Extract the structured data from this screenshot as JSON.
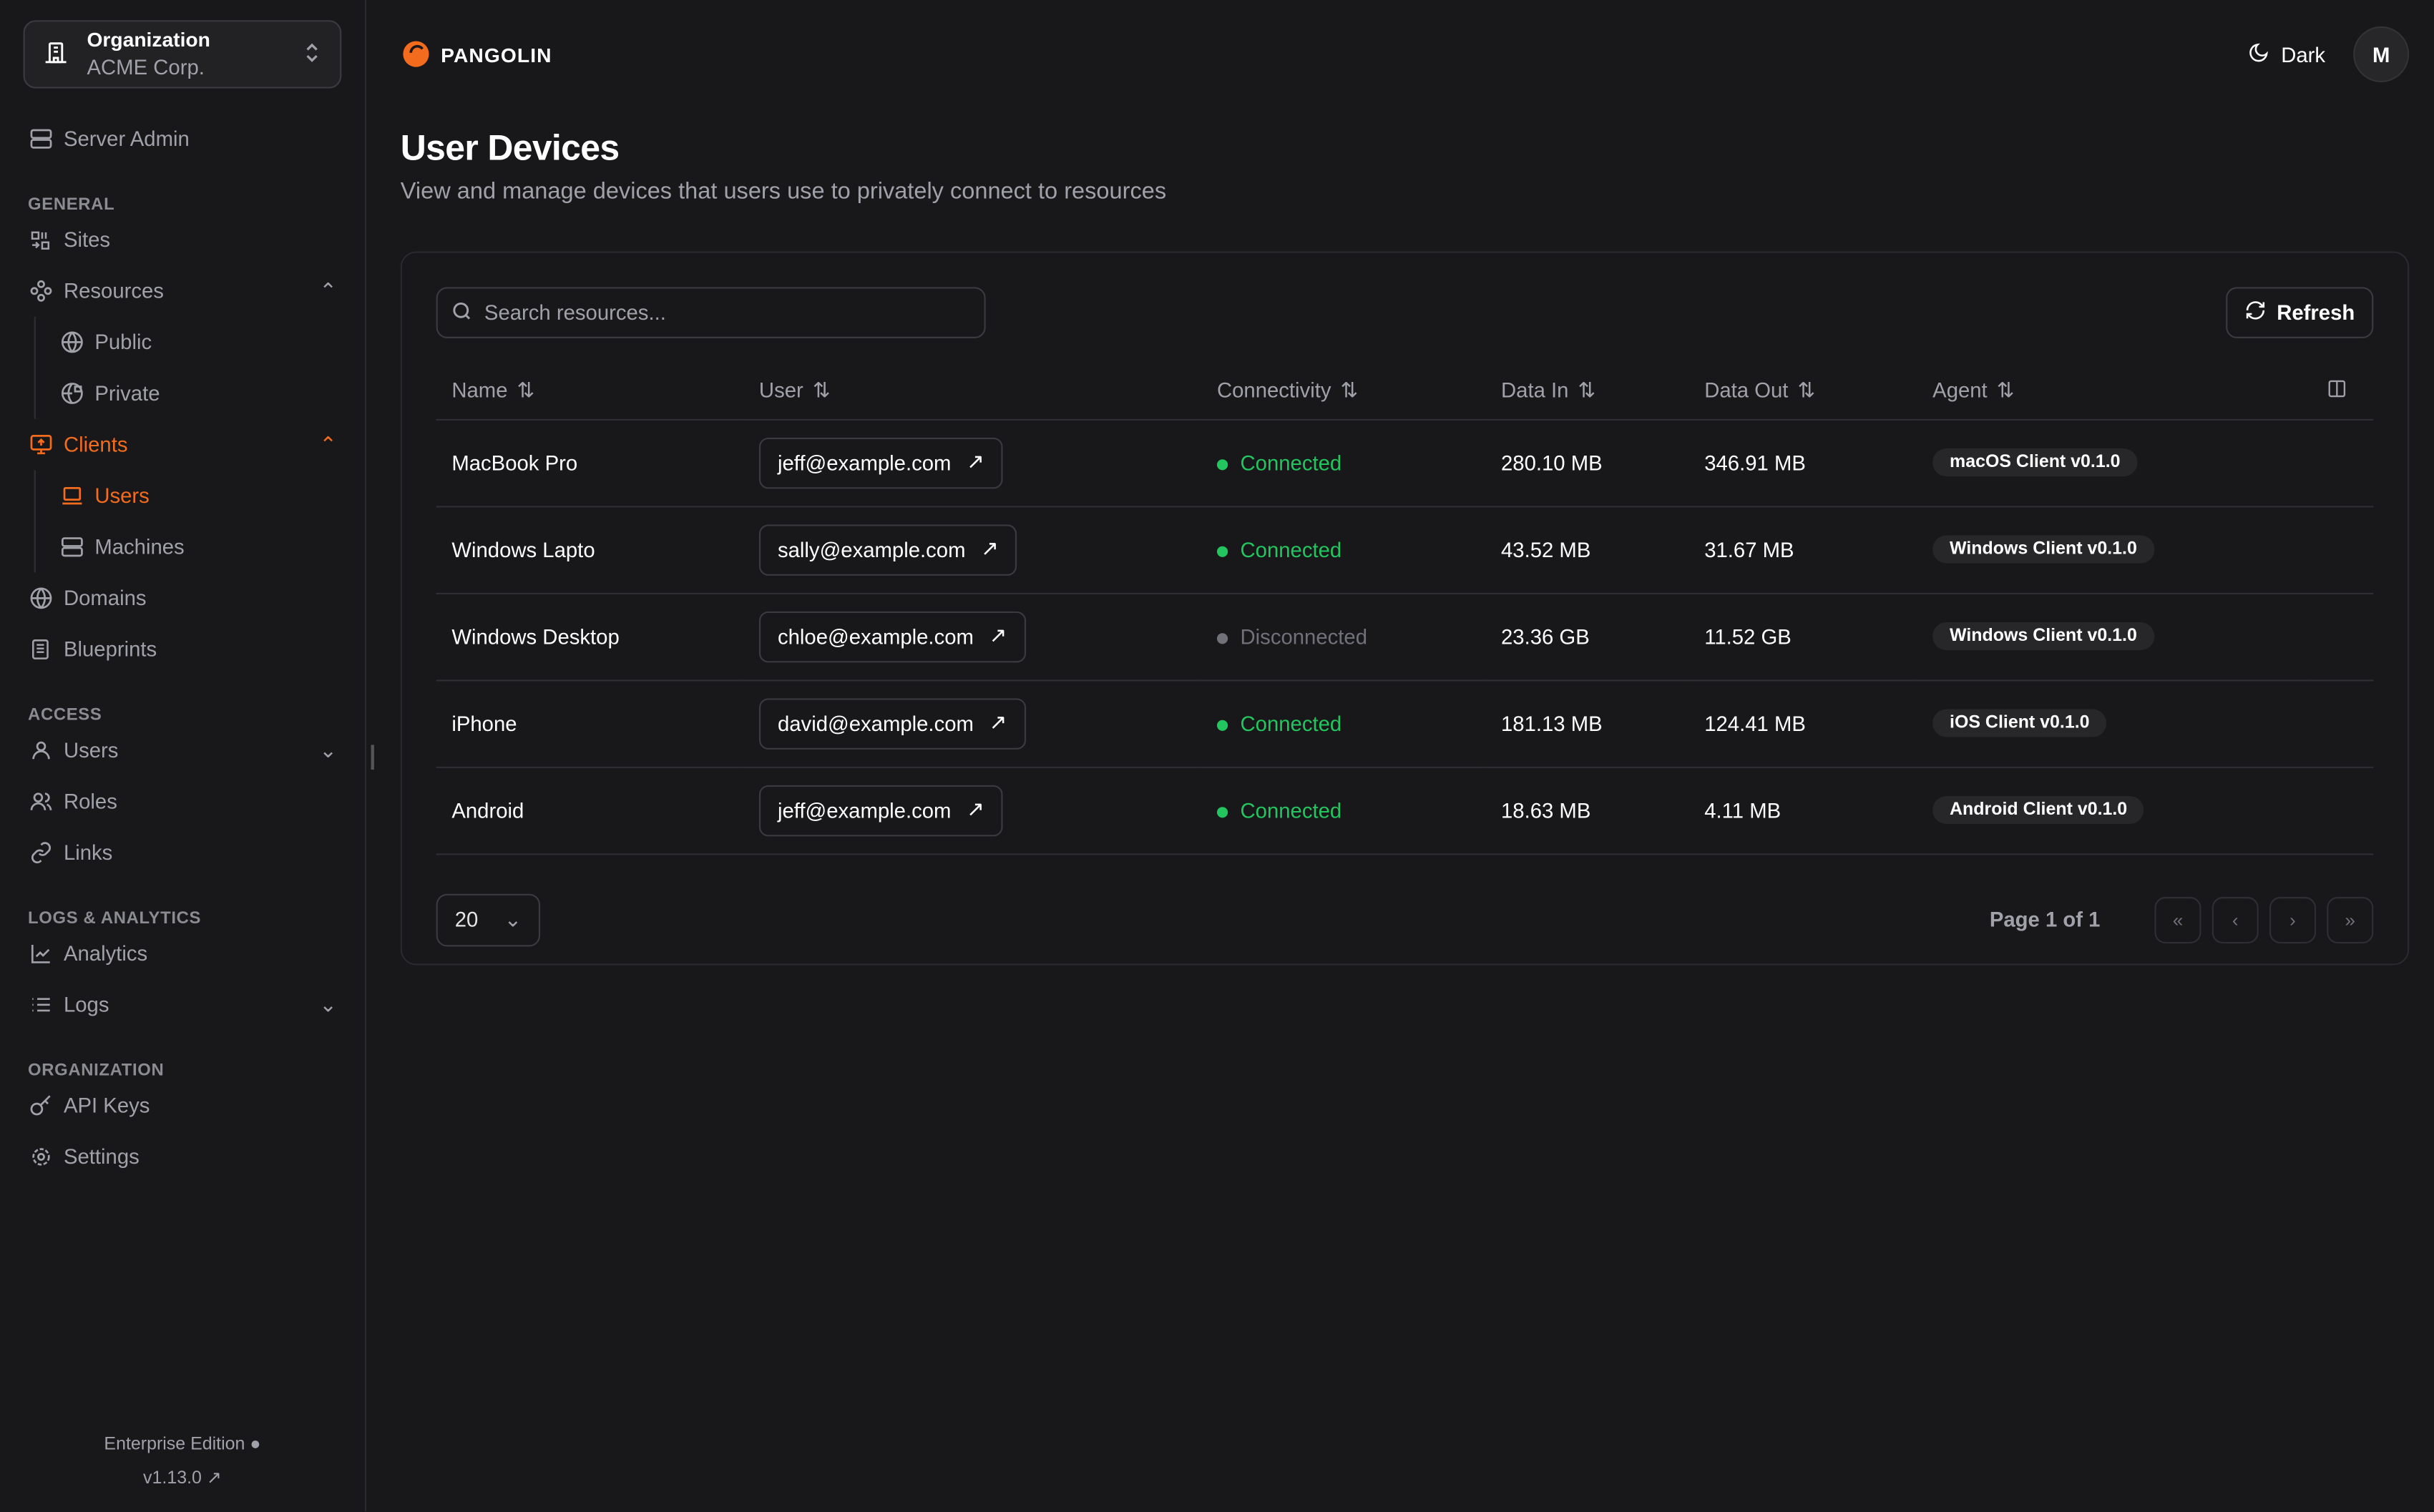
{
  "org": {
    "label": "Organization",
    "name": "ACME Corp."
  },
  "sidebar": {
    "server_admin": "Server Admin",
    "sections": {
      "general": "GENERAL",
      "access": "ACCESS",
      "logs": "LOGS & ANALYTICS",
      "organization": "ORGANIZATION"
    },
    "items": {
      "sites": "Sites",
      "resources": "Resources",
      "public": "Public",
      "private": "Private",
      "clients": "Clients",
      "users": "Users",
      "machines": "Machines",
      "domains": "Domains",
      "blueprints": "Blueprints",
      "access_users": "Users",
      "roles": "Roles",
      "links": "Links",
      "analytics": "Analytics",
      "logs": "Logs",
      "api_keys": "API Keys",
      "settings": "Settings"
    },
    "edition": "Enterprise Edition",
    "version": "v1.13.0"
  },
  "header": {
    "brand": "PANGOLIN",
    "theme": "Dark",
    "avatar": "M",
    "accent": "#f36b1c"
  },
  "page": {
    "title": "User Devices",
    "description": "View and manage devices that users use to privately connect to resources"
  },
  "toolbar": {
    "search_placeholder": "Search resources...",
    "refresh": "Refresh"
  },
  "table": {
    "columns": [
      "Name",
      "User",
      "Connectivity",
      "Data In",
      "Data Out",
      "Agent"
    ],
    "rows": [
      {
        "name": "MacBook Pro",
        "user": "jeff@example.com",
        "status": "Connected",
        "in": "280.10 MB",
        "out": "346.91 MB",
        "agent": "macOS Client v0.1.0"
      },
      {
        "name": "Windows Lapto",
        "user": "sally@example.com",
        "status": "Connected",
        "in": "43.52 MB",
        "out": "31.67 MB",
        "agent": "Windows Client v0.1.0"
      },
      {
        "name": "Windows Desktop",
        "user": "chloe@example.com",
        "status": "Disconnected",
        "in": "23.36 GB",
        "out": "11.52 GB",
        "agent": "Windows Client v0.1.0"
      },
      {
        "name": "iPhone",
        "user": "david@example.com",
        "status": "Connected",
        "in": "181.13 MB",
        "out": "124.41 MB",
        "agent": "iOS Client v0.1.0"
      },
      {
        "name": "Android",
        "user": "jeff@example.com",
        "status": "Connected",
        "in": "18.63 MB",
        "out": "4.11 MB",
        "agent": "Android Client v0.1.0"
      }
    ],
    "status_colors": {
      "Connected": "#22c55e",
      "Disconnected": "#71717a"
    }
  },
  "pagination": {
    "page_size": "20",
    "info": "Page 1 of 1"
  }
}
